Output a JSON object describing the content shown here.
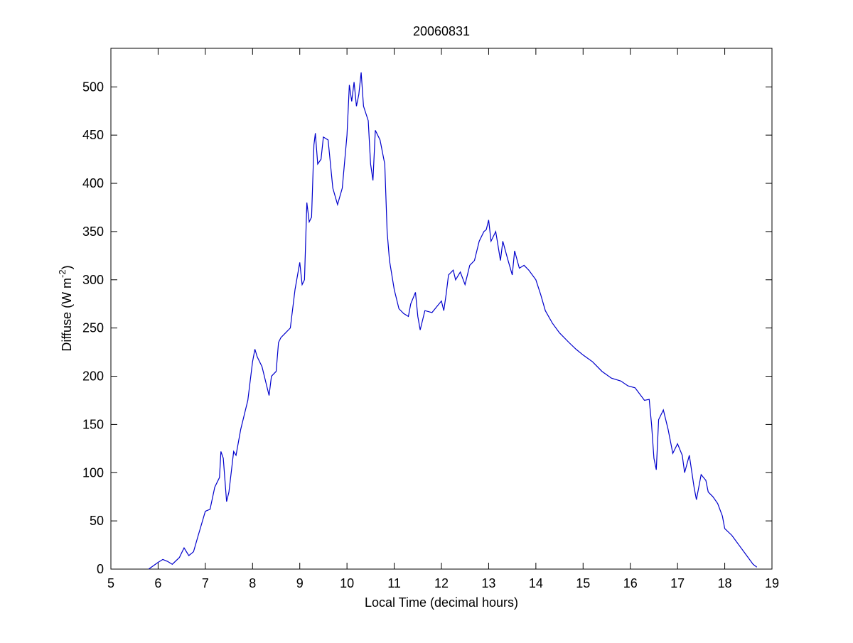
{
  "chart_data": {
    "type": "line",
    "title": "20060831",
    "xlabel": "Local Time (decimal hours)",
    "ylabel": [
      "Diffuse (W m",
      "-2",
      ")"
    ],
    "xlim": [
      5,
      19
    ],
    "xticks": [
      5,
      6,
      7,
      8,
      9,
      10,
      11,
      12,
      13,
      14,
      15,
      16,
      17,
      18,
      19
    ],
    "ylim": [
      0,
      540
    ],
    "yticks": [
      0,
      50,
      100,
      150,
      200,
      250,
      300,
      350,
      400,
      450,
      500
    ],
    "grid": false,
    "series": [
      {
        "color": "#0000cc",
        "x": [
          5.8,
          6.0,
          6.1,
          6.2,
          6.3,
          6.45,
          6.55,
          6.65,
          6.75,
          6.85,
          7.0,
          7.1,
          7.2,
          7.3,
          7.33,
          7.38,
          7.45,
          7.5,
          7.6,
          7.65,
          7.75,
          7.9,
          8.0,
          8.05,
          8.1,
          8.2,
          8.3,
          8.35,
          8.4,
          8.5,
          8.55,
          8.6,
          8.7,
          8.8,
          8.9,
          9.0,
          9.05,
          9.1,
          9.15,
          9.2,
          9.25,
          9.3,
          9.33,
          9.38,
          9.45,
          9.5,
          9.6,
          9.7,
          9.8,
          9.9,
          10.0,
          10.05,
          10.1,
          10.15,
          10.2,
          10.25,
          10.3,
          10.35,
          10.45,
          10.5,
          10.55,
          10.6,
          10.7,
          10.8,
          10.85,
          10.9,
          11.0,
          11.1,
          11.2,
          11.3,
          11.35,
          11.45,
          11.5,
          11.55,
          11.65,
          11.8,
          11.9,
          12.0,
          12.05,
          12.1,
          12.15,
          12.25,
          12.3,
          12.4,
          12.5,
          12.6,
          12.7,
          12.8,
          12.9,
          12.95,
          13.0,
          13.05,
          13.15,
          13.25,
          13.3,
          13.4,
          13.5,
          13.55,
          13.65,
          13.75,
          13.85,
          14.0,
          14.1,
          14.2,
          14.35,
          14.5,
          14.7,
          14.85,
          15.0,
          15.2,
          15.4,
          15.6,
          15.8,
          15.95,
          16.1,
          16.3,
          16.4,
          16.45,
          16.5,
          16.55,
          16.6,
          16.7,
          16.8,
          16.9,
          17.0,
          17.1,
          17.15,
          17.25,
          17.35,
          17.4,
          17.5,
          17.6,
          17.65,
          17.75,
          17.85,
          17.95,
          18.0,
          18.15,
          18.3,
          18.45,
          18.6,
          18.68
        ],
        "values": [
          0,
          7,
          10,
          8,
          5,
          12,
          22,
          14,
          18,
          35,
          60,
          62,
          85,
          95,
          122,
          115,
          70,
          80,
          122,
          118,
          145,
          175,
          215,
          228,
          220,
          210,
          190,
          180,
          200,
          205,
          235,
          240,
          245,
          250,
          290,
          318,
          295,
          300,
          380,
          360,
          365,
          440,
          452,
          420,
          425,
          448,
          445,
          395,
          378,
          395,
          450,
          502,
          485,
          505,
          480,
          492,
          515,
          480,
          465,
          420,
          403,
          455,
          445,
          420,
          350,
          320,
          290,
          270,
          265,
          262,
          275,
          287,
          262,
          248,
          268,
          266,
          272,
          278,
          268,
          285,
          305,
          310,
          300,
          308,
          295,
          315,
          320,
          340,
          350,
          352,
          362,
          340,
          350,
          320,
          340,
          322,
          305,
          330,
          312,
          315,
          310,
          300,
          285,
          268,
          255,
          245,
          235,
          228,
          222,
          215,
          205,
          198,
          195,
          190,
          188,
          175,
          176,
          150,
          115,
          103,
          155,
          165,
          145,
          120,
          130,
          118,
          100,
          118,
          85,
          72,
          98,
          92,
          80,
          75,
          68,
          55,
          42,
          35,
          25,
          15,
          5,
          2
        ]
      }
    ]
  }
}
